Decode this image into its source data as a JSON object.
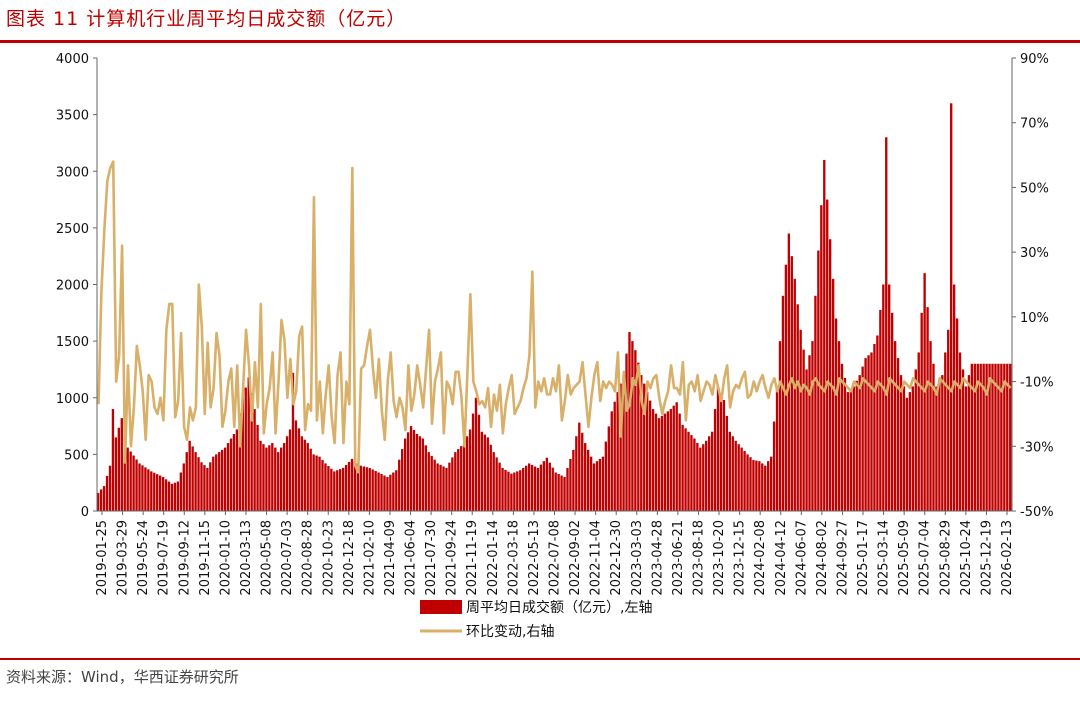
{
  "figure": {
    "title": "图表 11 计算机行业周平均日成交额（亿元）",
    "source": "资料来源：Wind，华西证券研究所"
  },
  "colors": {
    "accent": "#c00000",
    "bar": "#c00000",
    "line": "#d8b06a"
  },
  "chart_data": {
    "type": "bar",
    "title": "",
    "xlabel": "",
    "ylabel": "",
    "ylim": [
      0,
      4000
    ],
    "y2lim": [
      -50,
      90
    ],
    "yticks": [
      "0",
      "500",
      "1000",
      "1500",
      "2000",
      "2500",
      "3000",
      "3500",
      "4000"
    ],
    "y2ticks": [
      "-50%",
      "-30%",
      "-10%",
      "10%",
      "30%",
      "50%",
      "70%",
      "90%"
    ],
    "xtick_labels": [
      "2019-01-25",
      "2019-03-29",
      "2019-05-24",
      "2019-07-19",
      "2019-09-12",
      "2019-11-15",
      "2020-01-10",
      "2020-03-13",
      "2020-05-08",
      "2020-07-03",
      "2020-08-28",
      "2020-10-23",
      "2020-12-18",
      "2021-02-10",
      "2021-04-09",
      "2021-06-04",
      "2021-07-30",
      "2021-09-24",
      "2021-11-19",
      "2022-01-14",
      "2022-03-18",
      "2022-05-13",
      "2022-07-08",
      "2022-09-02",
      "2022-11-04",
      "2022-12-30",
      "2023-03-03",
      "2023-04-28",
      "2023-06-21",
      "2023-08-18",
      "2023-10-20",
      "2023-12-15",
      "2024-02-08",
      "2024-04-12",
      "2024-06-07",
      "2024-08-02",
      "2024-09-27",
      "2025-01-17",
      "2025-03-14",
      "2025-05-09",
      "2025-07-04",
      "2025-08-29",
      "2025-10-24",
      "2025-12-19",
      "2026-02-13"
    ],
    "legend": [
      "周平均日成交额（亿元）,左轴",
      "环比变动,右轴"
    ],
    "legend_position": "bottom",
    "grid": false,
    "series": [
      {
        "name": "周平均日成交额（亿元）,左轴",
        "axis": "left",
        "type": "bar",
        "anchors": [
          [
            0,
            160
          ],
          [
            2,
            220
          ],
          [
            4,
            400
          ],
          [
            5,
            900
          ],
          [
            6,
            650
          ],
          [
            8,
            820
          ],
          [
            10,
            560
          ],
          [
            14,
            420
          ],
          [
            18,
            350
          ],
          [
            22,
            300
          ],
          [
            25,
            240
          ],
          [
            27,
            260
          ],
          [
            29,
            420
          ],
          [
            31,
            620
          ],
          [
            33,
            520
          ],
          [
            35,
            430
          ],
          [
            37,
            380
          ],
          [
            39,
            480
          ],
          [
            41,
            520
          ],
          [
            43,
            560
          ],
          [
            45,
            640
          ],
          [
            47,
            720
          ],
          [
            49,
            1000
          ],
          [
            51,
            1180
          ],
          [
            53,
            900
          ],
          [
            55,
            620
          ],
          [
            57,
            560
          ],
          [
            59,
            600
          ],
          [
            61,
            520
          ],
          [
            63,
            600
          ],
          [
            65,
            720
          ],
          [
            66,
            1220
          ],
          [
            67,
            800
          ],
          [
            69,
            660
          ],
          [
            71,
            600
          ],
          [
            73,
            500
          ],
          [
            75,
            480
          ],
          [
            77,
            420
          ],
          [
            80,
            350
          ],
          [
            83,
            380
          ],
          [
            86,
            460
          ],
          [
            89,
            400
          ],
          [
            92,
            380
          ],
          [
            95,
            340
          ],
          [
            98,
            300
          ],
          [
            101,
            360
          ],
          [
            104,
            640
          ],
          [
            106,
            750
          ],
          [
            108,
            680
          ],
          [
            110,
            640
          ],
          [
            112,
            520
          ],
          [
            115,
            420
          ],
          [
            118,
            380
          ],
          [
            121,
            520
          ],
          [
            124,
            600
          ],
          [
            126,
            720
          ],
          [
            128,
            1000
          ],
          [
            130,
            700
          ],
          [
            132,
            650
          ],
          [
            134,
            520
          ],
          [
            137,
            380
          ],
          [
            140,
            330
          ],
          [
            143,
            360
          ],
          [
            146,
            420
          ],
          [
            149,
            380
          ],
          [
            152,
            470
          ],
          [
            155,
            340
          ],
          [
            158,
            300
          ],
          [
            161,
            540
          ],
          [
            163,
            780
          ],
          [
            165,
            600
          ],
          [
            168,
            420
          ],
          [
            171,
            480
          ],
          [
            174,
            880
          ],
          [
            176,
            1050
          ],
          [
            178,
            1200
          ],
          [
            180,
            1580
          ],
          [
            182,
            1420
          ],
          [
            184,
            1200
          ],
          [
            186,
            1050
          ],
          [
            188,
            900
          ],
          [
            190,
            820
          ],
          [
            192,
            860
          ],
          [
            194,
            900
          ],
          [
            196,
            960
          ],
          [
            198,
            760
          ],
          [
            200,
            700
          ],
          [
            202,
            640
          ],
          [
            204,
            560
          ],
          [
            206,
            620
          ],
          [
            208,
            700
          ],
          [
            210,
            1100
          ],
          [
            212,
            980
          ],
          [
            214,
            700
          ],
          [
            216,
            620
          ],
          [
            218,
            560
          ],
          [
            220,
            500
          ],
          [
            222,
            450
          ],
          [
            224,
            440
          ],
          [
            226,
            400
          ],
          [
            228,
            480
          ],
          [
            230,
            1100
          ],
          [
            232,
            1900
          ],
          [
            234,
            2450
          ],
          [
            236,
            2050
          ],
          [
            238,
            1600
          ],
          [
            240,
            1250
          ],
          [
            242,
            1500
          ],
          [
            244,
            2300
          ],
          [
            246,
            3100
          ],
          [
            248,
            2400
          ],
          [
            250,
            1700
          ],
          [
            252,
            1300
          ],
          [
            254,
            1050
          ],
          [
            256,
            1100
          ],
          [
            258,
            1200
          ],
          [
            260,
            1350
          ],
          [
            262,
            1400
          ],
          [
            264,
            1550
          ],
          [
            266,
            2000
          ],
          [
            267,
            3300
          ],
          [
            268,
            2000
          ],
          [
            270,
            1500
          ],
          [
            272,
            1200
          ],
          [
            274,
            1000
          ],
          [
            276,
            1100
          ],
          [
            278,
            1400
          ],
          [
            280,
            2100
          ],
          [
            282,
            1500
          ],
          [
            284,
            1100
          ],
          [
            286,
            1200
          ],
          [
            288,
            1600
          ],
          [
            289,
            3600
          ],
          [
            290,
            2000
          ],
          [
            292,
            1400
          ],
          [
            294,
            1100
          ],
          [
            296,
            1300
          ]
        ]
      },
      {
        "name": "环比变动,右轴",
        "axis": "right",
        "type": "line",
        "values": [
          -17,
          18,
          37,
          52,
          56,
          58,
          -10,
          -2,
          32,
          -35,
          -5,
          -30,
          -18,
          1,
          -5,
          -13,
          -28,
          -8,
          -10,
          -18,
          -20,
          -15,
          -22,
          6,
          14,
          14,
          -21,
          -16,
          5,
          -24,
          -28,
          -18,
          -22,
          -18,
          20,
          7,
          -20,
          2,
          -18,
          -12,
          5,
          -2,
          -24,
          -19,
          -10,
          -6,
          -24,
          -5,
          -30,
          -12,
          6,
          -5,
          -22,
          -4,
          -18,
          14,
          -26,
          -17,
          -12,
          -1,
          -26,
          -10,
          9,
          3,
          -15,
          -3,
          -17,
          -13,
          4,
          7,
          -25,
          -17,
          -19,
          47,
          -22,
          -10,
          -26,
          -14,
          -5,
          -21,
          -29,
          -8,
          -1,
          -29,
          -10,
          -17,
          56,
          -36,
          -38,
          -6,
          -5,
          1,
          6,
          -6,
          -15,
          -3,
          -19,
          -28,
          -10,
          -1,
          -16,
          -21,
          -15,
          -18,
          -25,
          -5,
          -19,
          -14,
          -5,
          -11,
          -18,
          -6,
          6,
          -23,
          -10,
          -6,
          -1,
          -26,
          -10,
          -12,
          -17,
          -7,
          -7,
          -15,
          -30,
          -7,
          17,
          -10,
          -13,
          -17,
          -16,
          -18,
          -12,
          -24,
          -14,
          -19,
          -11,
          -26,
          -17,
          -12,
          -8,
          -20,
          -18,
          -16,
          -12,
          -9,
          -2,
          24,
          -18,
          -10,
          -13,
          -9,
          -14,
          -14,
          -9,
          -13,
          -5,
          -22,
          -16,
          -8,
          -14,
          -12,
          -11,
          -10,
          -4,
          -14,
          -24,
          -15,
          -8,
          -4,
          -16,
          -10,
          -12,
          -10,
          -11,
          -13,
          -1,
          -27,
          -7,
          -19,
          -17,
          -9,
          -11,
          -5,
          -16,
          -20,
          -10,
          -12,
          -9,
          -8,
          -15,
          -20,
          -16,
          -13,
          -5,
          -12,
          -12,
          -14,
          -4,
          -22,
          -11,
          -10,
          -13,
          -8,
          -16,
          -13,
          -10,
          -11,
          -14,
          -8,
          -12,
          -16,
          -9,
          -5,
          -18,
          -13,
          -11,
          -12,
          -9,
          -7,
          -15,
          -14,
          -10,
          -13,
          -10,
          -8,
          -12,
          -15,
          -11,
          -9,
          -13,
          -10,
          -12,
          -14,
          -11,
          -9,
          -12,
          -10,
          -13,
          -11,
          -12,
          -14,
          -10,
          -9,
          -11,
          -12,
          -13,
          -10,
          -11,
          -12,
          -14,
          -9,
          -10,
          -11,
          -12,
          -13,
          -10,
          -11,
          -12,
          -9,
          -10,
          -11,
          -12,
          -13,
          -10,
          -11,
          -12,
          -14,
          -9,
          -10,
          -11,
          -12,
          -13,
          -10,
          -11,
          -12,
          -9,
          -10,
          -11,
          -12,
          -13,
          -10,
          -11,
          -12,
          -14,
          -9,
          -10,
          -11,
          -12,
          -13,
          -10,
          -11,
          -12,
          -9,
          -10,
          -11,
          -12,
          -13,
          -10,
          -11,
          -12,
          -14,
          -9,
          -10,
          -11,
          -12,
          -13,
          -10,
          -11,
          -12
        ]
      }
    ]
  }
}
